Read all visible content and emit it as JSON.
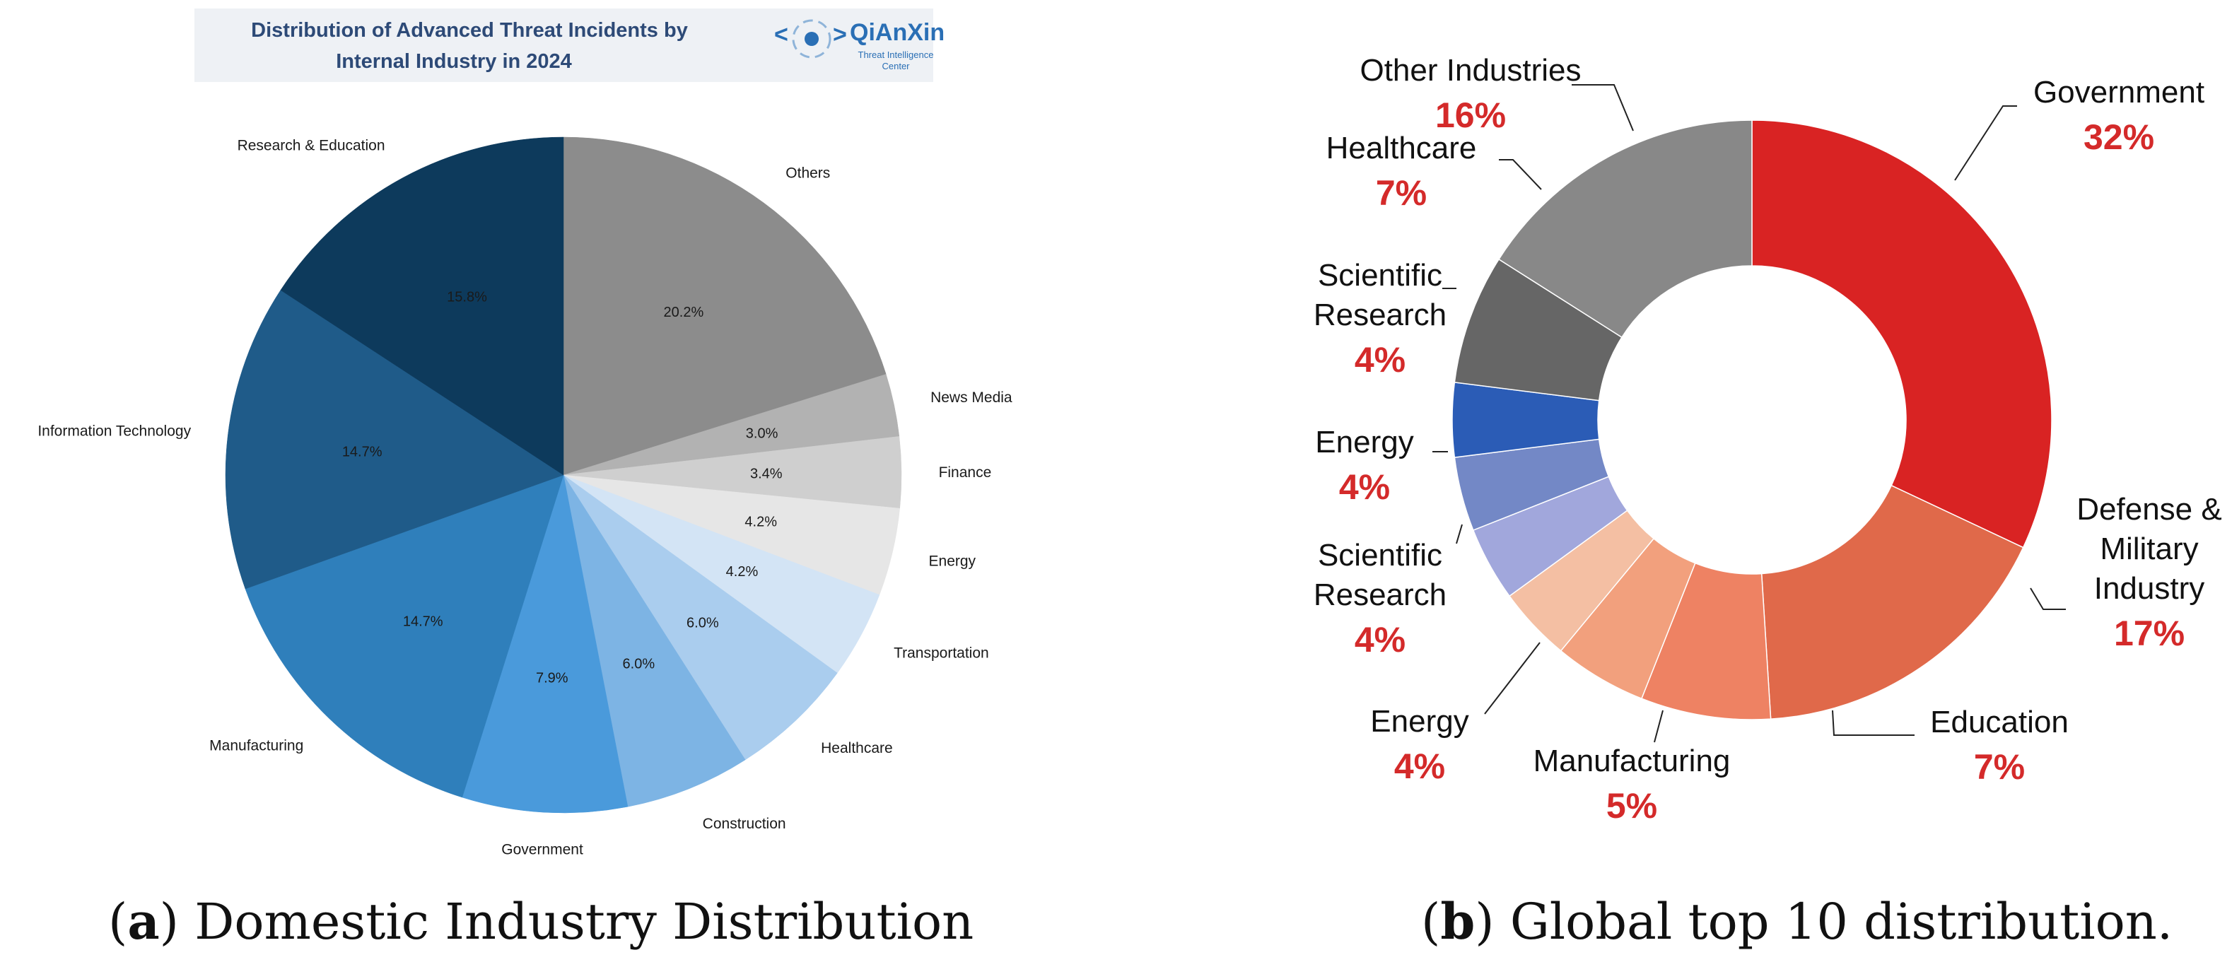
{
  "chart_data": [
    {
      "type": "pie",
      "title": "Distribution of Advanced Threat Incidents by Internal Industry in 2024",
      "title_lines": [
        "Distribution of Advanced Threat Incidents by",
        "Internal Industry in 2024"
      ],
      "brand": {
        "name": "QiAnXin",
        "sub_lines": [
          "Threat Intelligence",
          "Center"
        ]
      },
      "caption": {
        "letter": "a",
        "text": "Domestic Industry Distribution"
      },
      "slices": [
        {
          "label": "Others",
          "value": 20.2,
          "pct_label": "20.2%",
          "color": "#8c8c8c"
        },
        {
          "label": "News Media",
          "value": 3.0,
          "pct_label": "3.0%",
          "color": "#b2b2b2"
        },
        {
          "label": "Finance",
          "value": 3.4,
          "pct_label": "3.4%",
          "color": "#cfcfcf"
        },
        {
          "label": "Energy",
          "value": 4.2,
          "pct_label": "4.2%",
          "color": "#e6e6e6"
        },
        {
          "label": "Transportation",
          "value": 4.2,
          "pct_label": "4.2%",
          "color": "#d3e4f5"
        },
        {
          "label": "Healthcare",
          "value": 6.0,
          "pct_label": "6.0%",
          "color": "#aacdee"
        },
        {
          "label": "Construction",
          "value": 6.0,
          "pct_label": "6.0%",
          "color": "#7db4e4"
        },
        {
          "label": "Government",
          "value": 7.9,
          "pct_label": "7.9%",
          "color": "#4a9adb"
        },
        {
          "label": "Manufacturing",
          "value": 14.7,
          "pct_label": "14.7%",
          "color": "#2f7fbb"
        },
        {
          "label": "Information Technology",
          "value": 14.7,
          "pct_label": "14.7%",
          "color": "#1f5b89"
        },
        {
          "label": "Research & Education",
          "value": 15.8,
          "pct_label": "15.8%",
          "color": "#0d3a5c"
        }
      ]
    },
    {
      "type": "pie",
      "caption": {
        "letter": "b",
        "text": "Global top 10 distribution."
      },
      "accent_color": "#d42a2a",
      "slices": [
        {
          "name_lines": [
            "Government"
          ],
          "value": 32,
          "pct_label": "32%",
          "color": "#d92323"
        },
        {
          "name_lines": [
            "Defense &",
            "Military",
            "Industry"
          ],
          "value": 17,
          "pct_label": "17%",
          "color": "#e0694a"
        },
        {
          "name_lines": [
            "Education"
          ],
          "value": 7,
          "pct_label": "7%",
          "color": "#ee8263"
        },
        {
          "name_lines": [
            "Manufacturing"
          ],
          "value": 5,
          "pct_label": "5%",
          "color": "#f2a07d"
        },
        {
          "name_lines": [
            "Energy"
          ],
          "value": 4,
          "pct_label": "4%",
          "color": "#f4bfa3"
        },
        {
          "name_lines": [
            "Scientific",
            "Research"
          ],
          "value": 4,
          "pct_label": "4%",
          "color": "#a1a7dc"
        },
        {
          "name_lines": [
            "Energy"
          ],
          "value": 4,
          "pct_label": "4%",
          "color": "#7388c6"
        },
        {
          "name_lines": [
            "Scientific",
            "Research"
          ],
          "value": 4,
          "pct_label": "4%",
          "color": "#2b5cb6"
        },
        {
          "name_lines": [
            "Healthcare"
          ],
          "value": 7,
          "pct_label": "7%",
          "color": "#666666"
        },
        {
          "name_lines": [
            "Other Industries"
          ],
          "value": 16,
          "pct_label": "16%",
          "color": "#888888"
        }
      ]
    }
  ]
}
